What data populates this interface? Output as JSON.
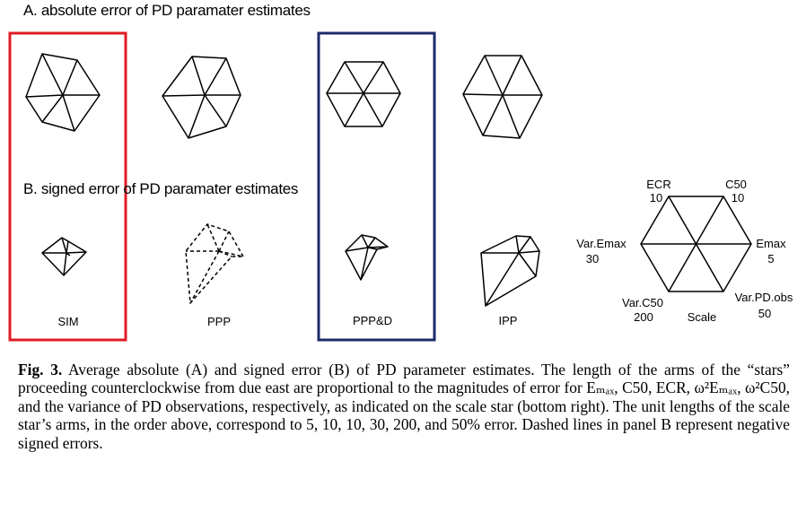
{
  "panel_a": {
    "title": "A. absolute error of PD paramater estimates"
  },
  "panel_b": {
    "title": "B. signed error of PD paramater estimates"
  },
  "methods": [
    "SIM",
    "PPP",
    "PPP&D",
    "IPP"
  ],
  "highlight_colors": {
    "sim_box": "#e01b24",
    "pppd_box": "#1c2b6b"
  },
  "scale_star": {
    "labels": [
      {
        "name": "Emax",
        "value": "5"
      },
      {
        "name": "C50",
        "value": "10"
      },
      {
        "name": "ECR",
        "value": "10"
      },
      {
        "name": "Var.Emax",
        "value": "30"
      },
      {
        "name": "Var.C50",
        "value": "200"
      },
      {
        "name": "Var.PD.obs",
        "value": "50"
      }
    ],
    "scale_word": "Scale"
  },
  "caption": {
    "fig_no": "Fig. 3.",
    "body": "Average absolute (A) and signed error (B) of PD parameter estimates. The length of the arms of the “stars” proceeding counterclockwise from due east are proportional to the magnitudes of error for Eₘₐₓ, C50, ECR, ω²Eₘₐₓ, ω²C50, and the variance of PD observations, respectively, as indicated on the scale star (bottom right). The unit lengths of the scale star’s arms, in the order above, correspond to 5, 10, 10, 30, 200, and 50% error. Dashed lines in panel B represent negative signed errors."
  }
}
